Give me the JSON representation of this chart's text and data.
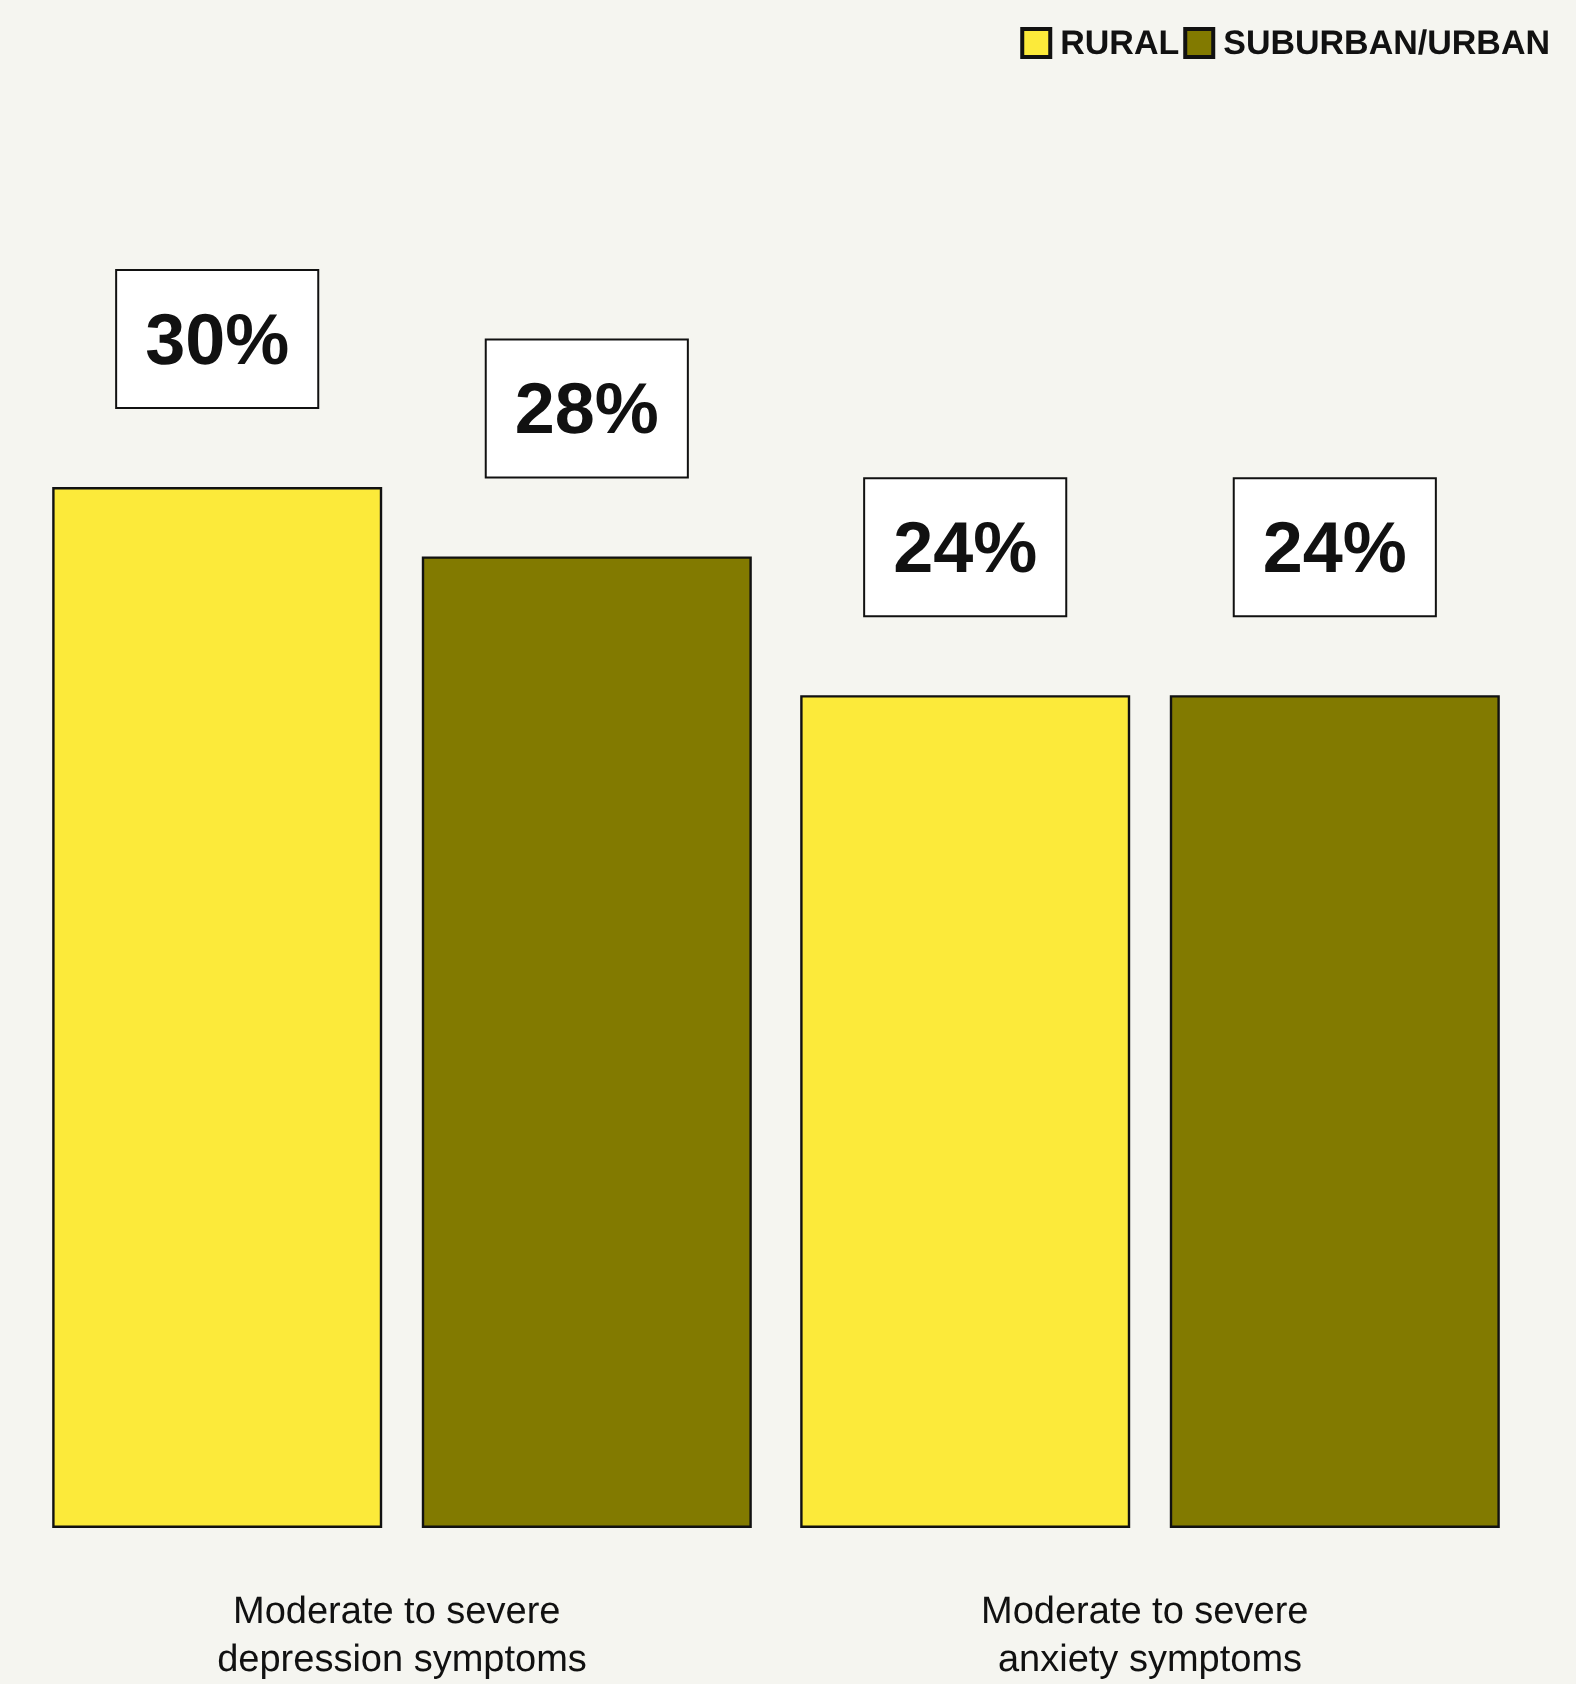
{
  "chart_data": {
    "type": "bar",
    "categories": [
      "Moderate to severe depression symptoms",
      "Moderate to severe anxiety symptoms"
    ],
    "series": [
      {
        "name": "RURAL",
        "color": "#fcea3a",
        "values": [
          30,
          24
        ],
        "value_labels": [
          "30%",
          "24%"
        ]
      },
      {
        "name": "SUBURBAN/URBAN",
        "color": "#827a00",
        "values": [
          28,
          24
        ],
        "value_labels": [
          "28%",
          "24%"
        ]
      }
    ],
    "legend": "top right",
    "grid": false
  }
}
